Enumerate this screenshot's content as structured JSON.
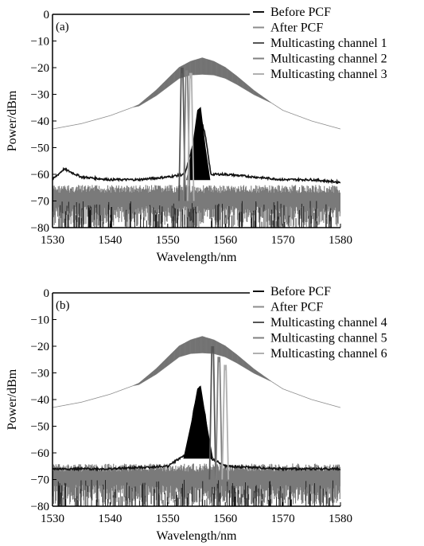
{
  "chart_data": [
    {
      "panel_label": "(a)",
      "type": "line",
      "xlabel": "Wavelength/nm",
      "ylabel": "Power/dBm",
      "xlim": [
        1530,
        1580
      ],
      "ylim": [
        -80,
        0
      ],
      "xticks": [
        1530,
        1540,
        1550,
        1560,
        1570,
        1580
      ],
      "yticks": [
        0,
        -10,
        -20,
        -30,
        -40,
        -50,
        -60,
        -70,
        -80
      ],
      "legend_position": "top-right",
      "series": [
        {
          "name": "Before PCF",
          "color": "#111111",
          "kind": "pump-and-signal",
          "x": [
            1530,
            1532,
            1535,
            1540,
            1545,
            1550,
            1553,
            1554.5,
            1555.5,
            1556.5,
            1557.5,
            1560,
            1565,
            1570,
            1575,
            1580
          ],
          "y": [
            -62,
            -58,
            -61,
            -62,
            -62,
            -61,
            -60,
            -48,
            -37,
            -45,
            -60,
            -60,
            -61,
            -62,
            -62,
            -63
          ]
        },
        {
          "name": "After PCF",
          "color": "#8c8c8c",
          "kind": "broadened-supercontinuum",
          "x": [
            1530,
            1535,
            1540,
            1545,
            1548,
            1550,
            1552,
            1554,
            1556,
            1558,
            1560,
            1562,
            1565,
            1570,
            1575,
            1580
          ],
          "y": [
            -43,
            -41,
            -38,
            -34,
            -29,
            -25,
            -21,
            -19,
            -18,
            -19,
            -21,
            -24,
            -29,
            -36,
            -40,
            -43
          ]
        },
        {
          "name": "Multicasting channel 1",
          "color": "#555555",
          "center": 1552.5,
          "peak": -22
        },
        {
          "name": "Multicasting channel 2",
          "color": "#808080",
          "center": 1553.3,
          "peak": -23
        },
        {
          "name": "Multicasting channel 3",
          "color": "#b0b0b0",
          "center": 1554.0,
          "peak": -24
        }
      ]
    },
    {
      "panel_label": "(b)",
      "type": "line",
      "xlabel": "Wavelength/nm",
      "ylabel": "Power/dBm",
      "xlim": [
        1530,
        1580
      ],
      "ylim": [
        -80,
        0
      ],
      "xticks": [
        1530,
        1540,
        1550,
        1560,
        1570,
        1580
      ],
      "yticks": [
        0,
        -10,
        -20,
        -30,
        -40,
        -50,
        -60,
        -70,
        -80
      ],
      "legend_position": "top-right",
      "series": [
        {
          "name": "Before PCF",
          "color": "#111111",
          "kind": "pump-and-signal",
          "x": [
            1530,
            1540,
            1550,
            1553.5,
            1554.5,
            1555.5,
            1556.5,
            1557.5,
            1560,
            1570,
            1580
          ],
          "y": [
            -66,
            -66,
            -65,
            -60,
            -44,
            -36,
            -46,
            -62,
            -65,
            -66,
            -66
          ]
        },
        {
          "name": "After PCF",
          "color": "#8c8c8c",
          "kind": "broadened-supercontinuum",
          "x": [
            1530,
            1535,
            1540,
            1545,
            1548,
            1550,
            1552,
            1554,
            1556,
            1558,
            1560,
            1562,
            1565,
            1570,
            1575,
            1580
          ],
          "y": [
            -43,
            -41,
            -38,
            -34,
            -29,
            -25,
            -21,
            -19,
            -18,
            -19,
            -21,
            -24,
            -29,
            -36,
            -40,
            -43
          ]
        },
        {
          "name": "Multicasting channel 4",
          "color": "#555555",
          "center": 1557.8,
          "peak": -22
        },
        {
          "name": "Multicasting channel 5",
          "color": "#808080",
          "center": 1558.9,
          "peak": -26
        },
        {
          "name": "Multicasting channel 6",
          "color": "#b0b0b0",
          "center": 1560.0,
          "peak": -29
        }
      ]
    }
  ]
}
